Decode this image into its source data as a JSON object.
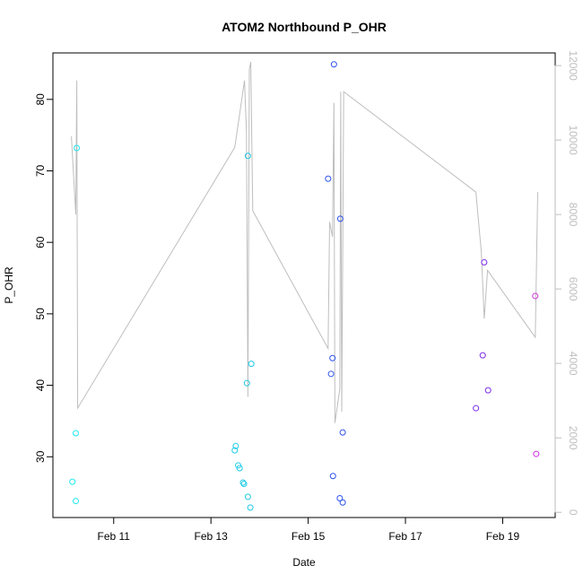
{
  "chart_data": {
    "type": "scatter",
    "title": "ATOM2 Northbound P_OHR",
    "xlabel": "Date",
    "ylabel": "P_OHR",
    "x_ticks": [
      {
        "label": "Feb 11",
        "value": 11
      },
      {
        "label": "Feb 13",
        "value": 13
      },
      {
        "label": "Feb 15",
        "value": 15
      },
      {
        "label": "Feb 17",
        "value": 17
      },
      {
        "label": "Feb 19",
        "value": 19
      }
    ],
    "xlim": [
      9.75,
      20.08
    ],
    "ylim": [
      21.5,
      86.5
    ],
    "y_ticks": [
      30,
      40,
      50,
      60,
      70,
      80
    ],
    "y2lim": [
      -140,
      12340
    ],
    "y2_ticks": [
      0,
      2000,
      4000,
      6000,
      8000,
      10000,
      12000
    ],
    "grid": false,
    "points": [
      {
        "x": 10.15,
        "y": 26.5,
        "color": "#1ee8ee"
      },
      {
        "x": 10.22,
        "y": 23.8,
        "color": "#1ee8ee"
      },
      {
        "x": 10.22,
        "y": 33.3,
        "color": "#1ee8ee"
      },
      {
        "x": 10.24,
        "y": 73.2,
        "color": "#1ee8ee"
      },
      {
        "x": 13.49,
        "y": 30.9,
        "color": "#1ecce6"
      },
      {
        "x": 13.51,
        "y": 31.5,
        "color": "#1ecce6"
      },
      {
        "x": 13.56,
        "y": 28.8,
        "color": "#1ecce6"
      },
      {
        "x": 13.59,
        "y": 28.4,
        "color": "#1ecce6"
      },
      {
        "x": 13.66,
        "y": 26.4,
        "color": "#1ecce6"
      },
      {
        "x": 13.68,
        "y": 26.2,
        "color": "#1ecce6"
      },
      {
        "x": 13.74,
        "y": 40.3,
        "color": "#1ec8e4"
      },
      {
        "x": 13.76,
        "y": 72.1,
        "color": "#1ec8e4"
      },
      {
        "x": 13.76,
        "y": 24.4,
        "color": "#1ec8e4"
      },
      {
        "x": 13.81,
        "y": 22.9,
        "color": "#1ec8e4"
      },
      {
        "x": 13.83,
        "y": 43.0,
        "color": "#1ec8e4"
      },
      {
        "x": 15.41,
        "y": 68.9,
        "color": "#2e52ee"
      },
      {
        "x": 15.47,
        "y": 41.6,
        "color": "#2e52ee"
      },
      {
        "x": 15.5,
        "y": 43.8,
        "color": "#2e52ee"
      },
      {
        "x": 15.51,
        "y": 27.3,
        "color": "#2e52ee"
      },
      {
        "x": 15.53,
        "y": 84.9,
        "color": "#2e52ee"
      },
      {
        "x": 15.65,
        "y": 24.2,
        "color": "#2e52ee"
      },
      {
        "x": 15.66,
        "y": 63.3,
        "color": "#2e52ee"
      },
      {
        "x": 15.71,
        "y": 23.6,
        "color": "#2e52ee"
      },
      {
        "x": 15.71,
        "y": 33.4,
        "color": "#2e52ee"
      },
      {
        "x": 18.45,
        "y": 36.8,
        "color": "#7a2ee8"
      },
      {
        "x": 18.59,
        "y": 44.2,
        "color": "#7a2ee8"
      },
      {
        "x": 18.62,
        "y": 57.2,
        "color": "#7a2ee8"
      },
      {
        "x": 18.7,
        "y": 39.3,
        "color": "#7a2ee8"
      },
      {
        "x": 19.67,
        "y": 52.5,
        "color": "#d22ee0"
      },
      {
        "x": 19.69,
        "y": 30.4,
        "color": "#d22ee0"
      }
    ],
    "line_series": {
      "axis": "right",
      "color": "#bebebe",
      "points": [
        {
          "x": 10.13,
          "y": 10100
        },
        {
          "x": 10.22,
          "y": 8000
        },
        {
          "x": 10.24,
          "y": 11600
        },
        {
          "x": 10.26,
          "y": 2800
        },
        {
          "x": 13.49,
          "y": 9800
        },
        {
          "x": 13.59,
          "y": 10700
        },
        {
          "x": 13.69,
          "y": 11600
        },
        {
          "x": 13.73,
          "y": 10200
        },
        {
          "x": 13.76,
          "y": 3100
        },
        {
          "x": 13.79,
          "y": 11900
        },
        {
          "x": 13.82,
          "y": 12100
        },
        {
          "x": 13.86,
          "y": 8100
        },
        {
          "x": 15.41,
          "y": 4400
        },
        {
          "x": 15.44,
          "y": 7800
        },
        {
          "x": 15.5,
          "y": 7400
        },
        {
          "x": 15.53,
          "y": 11000
        },
        {
          "x": 15.55,
          "y": 2400
        },
        {
          "x": 15.65,
          "y": 3300
        },
        {
          "x": 15.67,
          "y": 11300
        },
        {
          "x": 15.69,
          "y": 2700
        },
        {
          "x": 15.73,
          "y": 11300
        },
        {
          "x": 18.45,
          "y": 8600
        },
        {
          "x": 18.56,
          "y": 7000
        },
        {
          "x": 18.62,
          "y": 5200
        },
        {
          "x": 18.69,
          "y": 6500
        },
        {
          "x": 19.67,
          "y": 4700
        },
        {
          "x": 19.72,
          "y": 8600
        }
      ]
    }
  }
}
